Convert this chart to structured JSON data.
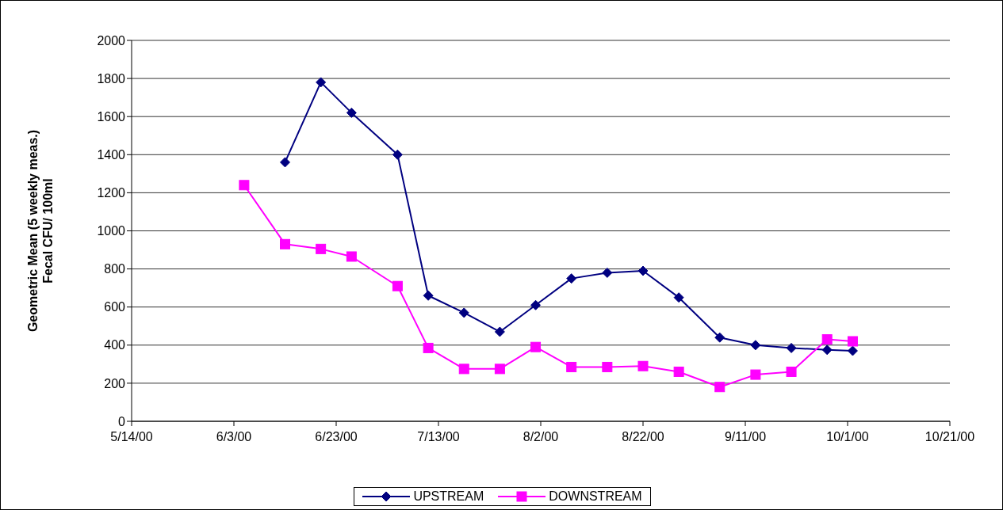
{
  "chart_data": {
    "type": "line",
    "ylabel": "Geometric Mean (5 weekly meas.)\nFecal CFU/ 100ml",
    "x": [
      "2000-06-05",
      "2000-06-13",
      "2000-06-20",
      "2000-06-26",
      "2000-07-05",
      "2000-07-11",
      "2000-07-18",
      "2000-07-25",
      "2000-08-01",
      "2000-08-08",
      "2000-08-15",
      "2000-08-22",
      "2000-08-29",
      "2000-09-06",
      "2000-09-13",
      "2000-09-20",
      "2000-09-27",
      "2000-10-02"
    ],
    "series": [
      {
        "name": "UPSTREAM",
        "color": "#000080",
        "marker": "diamond",
        "values": [
          null,
          1360,
          1780,
          1620,
          1400,
          660,
          570,
          470,
          610,
          750,
          780,
          790,
          650,
          440,
          400,
          385,
          375,
          370
        ]
      },
      {
        "name": "DOWNSTREAM",
        "color": "#ff00ff",
        "marker": "square",
        "values": [
          1240,
          930,
          905,
          865,
          710,
          385,
          275,
          275,
          390,
          285,
          285,
          290,
          260,
          180,
          245,
          260,
          430,
          420
        ]
      }
    ],
    "xlim": [
      "2000-05-14",
      "2000-10-21"
    ],
    "xticks": [
      {
        "value": "2000-05-14",
        "label": "5/14/00"
      },
      {
        "value": "2000-06-03",
        "label": "6/3/00"
      },
      {
        "value": "2000-06-23",
        "label": "6/23/00"
      },
      {
        "value": "2000-07-13",
        "label": "7/13/00"
      },
      {
        "value": "2000-08-02",
        "label": "8/2/00"
      },
      {
        "value": "2000-08-22",
        "label": "8/22/00"
      },
      {
        "value": "2000-09-11",
        "label": "9/11/00"
      },
      {
        "value": "2000-10-01",
        "label": "10/1/00"
      },
      {
        "value": "2000-10-21",
        "label": "10/21/00"
      }
    ],
    "ylim": [
      0,
      2000
    ],
    "yticks": [
      0,
      200,
      400,
      600,
      800,
      1000,
      1200,
      1400,
      1600,
      1800,
      2000
    ],
    "grid": "y",
    "legend": "bottom"
  }
}
